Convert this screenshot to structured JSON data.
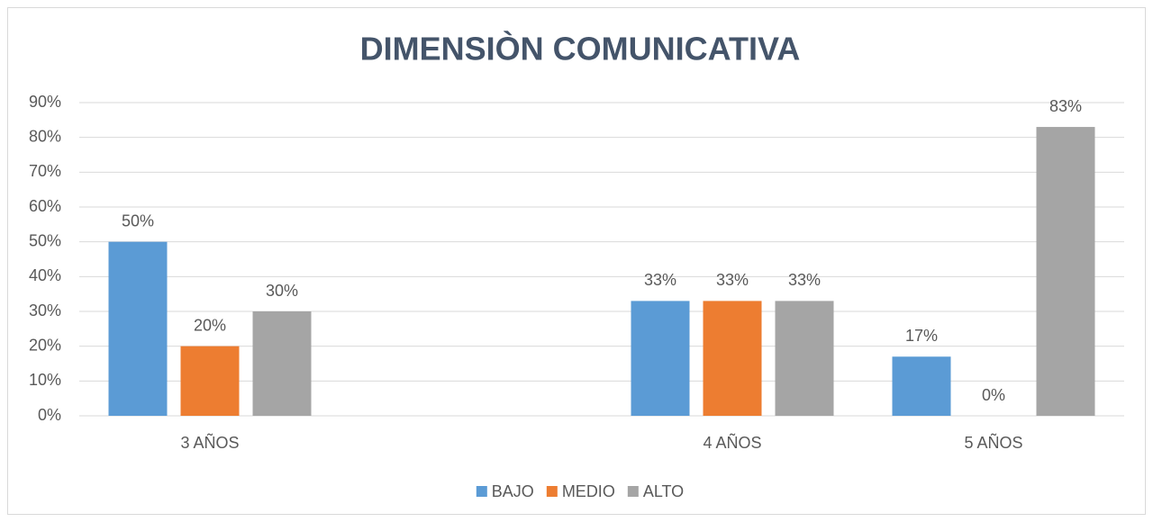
{
  "chart_data": {
    "type": "bar",
    "title": "DIMENSIÒN COMUNICATIVA",
    "categories": [
      "3 AÑOS",
      null,
      "4 AÑOS",
      "5 AÑOS"
    ],
    "series": [
      {
        "name": "BAJO",
        "color": "#5b9bd5",
        "values": [
          50,
          null,
          33,
          17
        ],
        "value_labels": [
          "50%",
          null,
          "33%",
          "17%"
        ]
      },
      {
        "name": "MEDIO",
        "color": "#ed7d31",
        "values": [
          20,
          null,
          33,
          0
        ],
        "value_labels": [
          "20%",
          null,
          "33%",
          "0%"
        ]
      },
      {
        "name": "ALTO",
        "color": "#a5a5a5",
        "values": [
          30,
          null,
          33,
          83
        ],
        "value_labels": [
          "30%",
          null,
          "33%",
          "83%"
        ]
      }
    ],
    "ylim": [
      0,
      90
    ],
    "yticks": [
      {
        "value": 0,
        "label": "0%"
      },
      {
        "value": 10,
        "label": "10%"
      },
      {
        "value": 20,
        "label": "20%"
      },
      {
        "value": 30,
        "label": "30%"
      },
      {
        "value": 40,
        "label": "40%"
      },
      {
        "value": 50,
        "label": "50%"
      },
      {
        "value": 60,
        "label": "60%"
      },
      {
        "value": 70,
        "label": "70%"
      },
      {
        "value": 80,
        "label": "80%"
      },
      {
        "value": 90,
        "label": "90%"
      }
    ],
    "grid": true,
    "legend": "bottom"
  }
}
